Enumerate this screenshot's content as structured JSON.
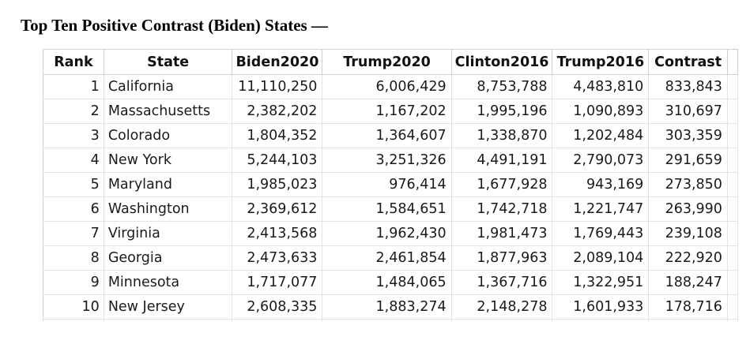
{
  "title": "Top Ten Positive Contrast (Biden) States —",
  "table": {
    "columns": [
      "Rank",
      "State",
      "Biden2020",
      "Trump2020",
      "Clinton2016",
      "Trump2016",
      "Contrast"
    ],
    "rows": [
      [
        "1",
        "California",
        "11,110,250",
        "6,006,429",
        "8,753,788",
        "4,483,810",
        "833,843"
      ],
      [
        "2",
        "Massachusetts",
        "2,382,202",
        "1,167,202",
        "1,995,196",
        "1,090,893",
        "310,697"
      ],
      [
        "3",
        "Colorado",
        "1,804,352",
        "1,364,607",
        "1,338,870",
        "1,202,484",
        "303,359"
      ],
      [
        "4",
        "New York",
        "5,244,103",
        "3,251,326",
        "4,491,191",
        "2,790,073",
        "291,659"
      ],
      [
        "5",
        "Maryland",
        "1,985,023",
        "976,414",
        "1,677,928",
        "943,169",
        "273,850"
      ],
      [
        "6",
        "Washington",
        "2,369,612",
        "1,584,651",
        "1,742,718",
        "1,221,747",
        "263,990"
      ],
      [
        "7",
        "Virginia",
        "2,413,568",
        "1,962,430",
        "1,981,473",
        "1,769,443",
        "239,108"
      ],
      [
        "8",
        "Georgia",
        "2,473,633",
        "2,461,854",
        "1,877,963",
        "2,089,104",
        "222,920"
      ],
      [
        "9",
        "Minnesota",
        "1,717,077",
        "1,484,065",
        "1,367,716",
        "1,322,951",
        "188,247"
      ],
      [
        "10",
        "New Jersey",
        "2,608,335",
        "1,883,274",
        "2,148,278",
        "1,601,933",
        "178,716"
      ]
    ]
  }
}
